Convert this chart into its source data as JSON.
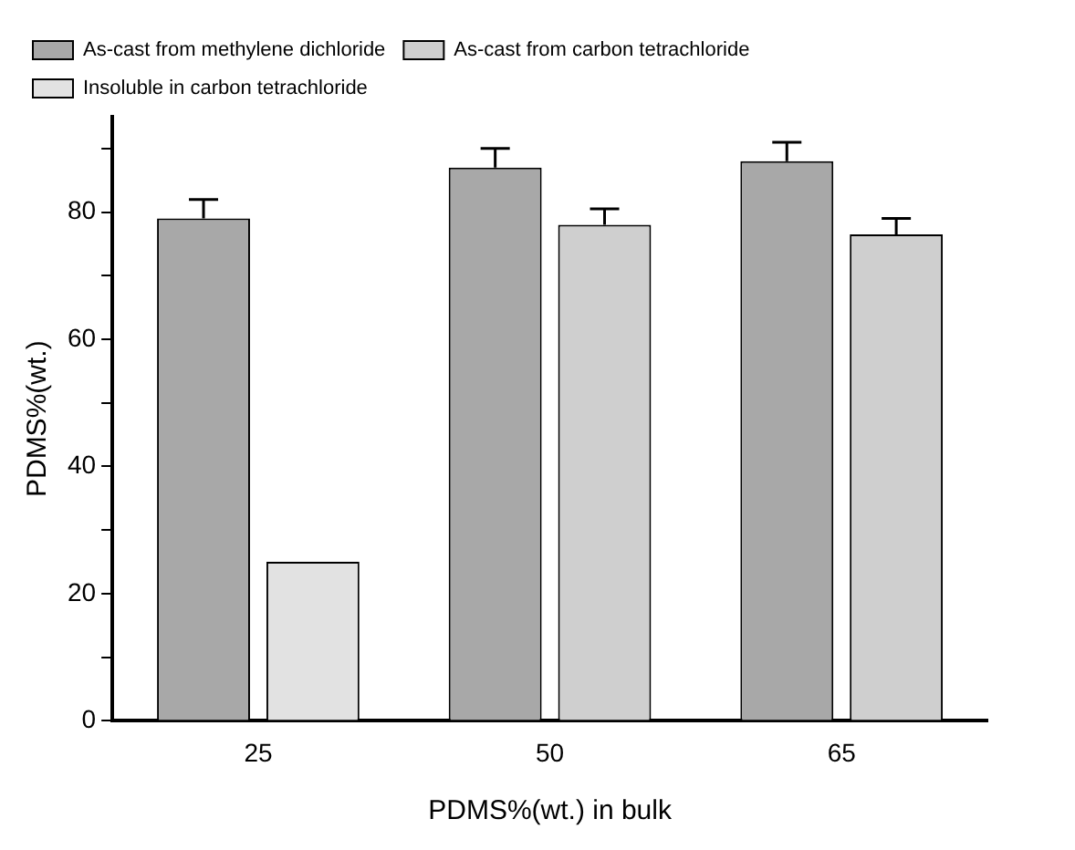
{
  "chart_data": {
    "type": "bar",
    "xlabel": "PDMS%(wt.) in bulk",
    "ylabel": "PDMS%(wt.)",
    "categories": [
      "25",
      "50",
      "65"
    ],
    "series": [
      {
        "name": "As-cast from methylene dichloride",
        "color": "#a8a8a8",
        "values": [
          79,
          87,
          88
        ],
        "errors": [
          3,
          3,
          3
        ]
      },
      {
        "name": "As-cast from carbon tetrachloride",
        "color": "#cfcfcf",
        "values": [
          null,
          78,
          76.5
        ],
        "errors": [
          null,
          2.5,
          2.5
        ]
      },
      {
        "name": "Insoluble in carbon tetrachloride",
        "color": "#e2e2e2",
        "values": [
          25,
          null,
          null
        ]
      }
    ],
    "ylim": [
      0,
      95
    ],
    "yticks": [
      0,
      {
        "value": 10,
        "label": null
      },
      20,
      {
        "value": 30,
        "label": null
      },
      40,
      {
        "value": 50,
        "label": null
      },
      60,
      {
        "value": 70,
        "label": null
      },
      80,
      {
        "value": 90,
        "label": null
      }
    ],
    "grid": false,
    "legend": "top left"
  }
}
